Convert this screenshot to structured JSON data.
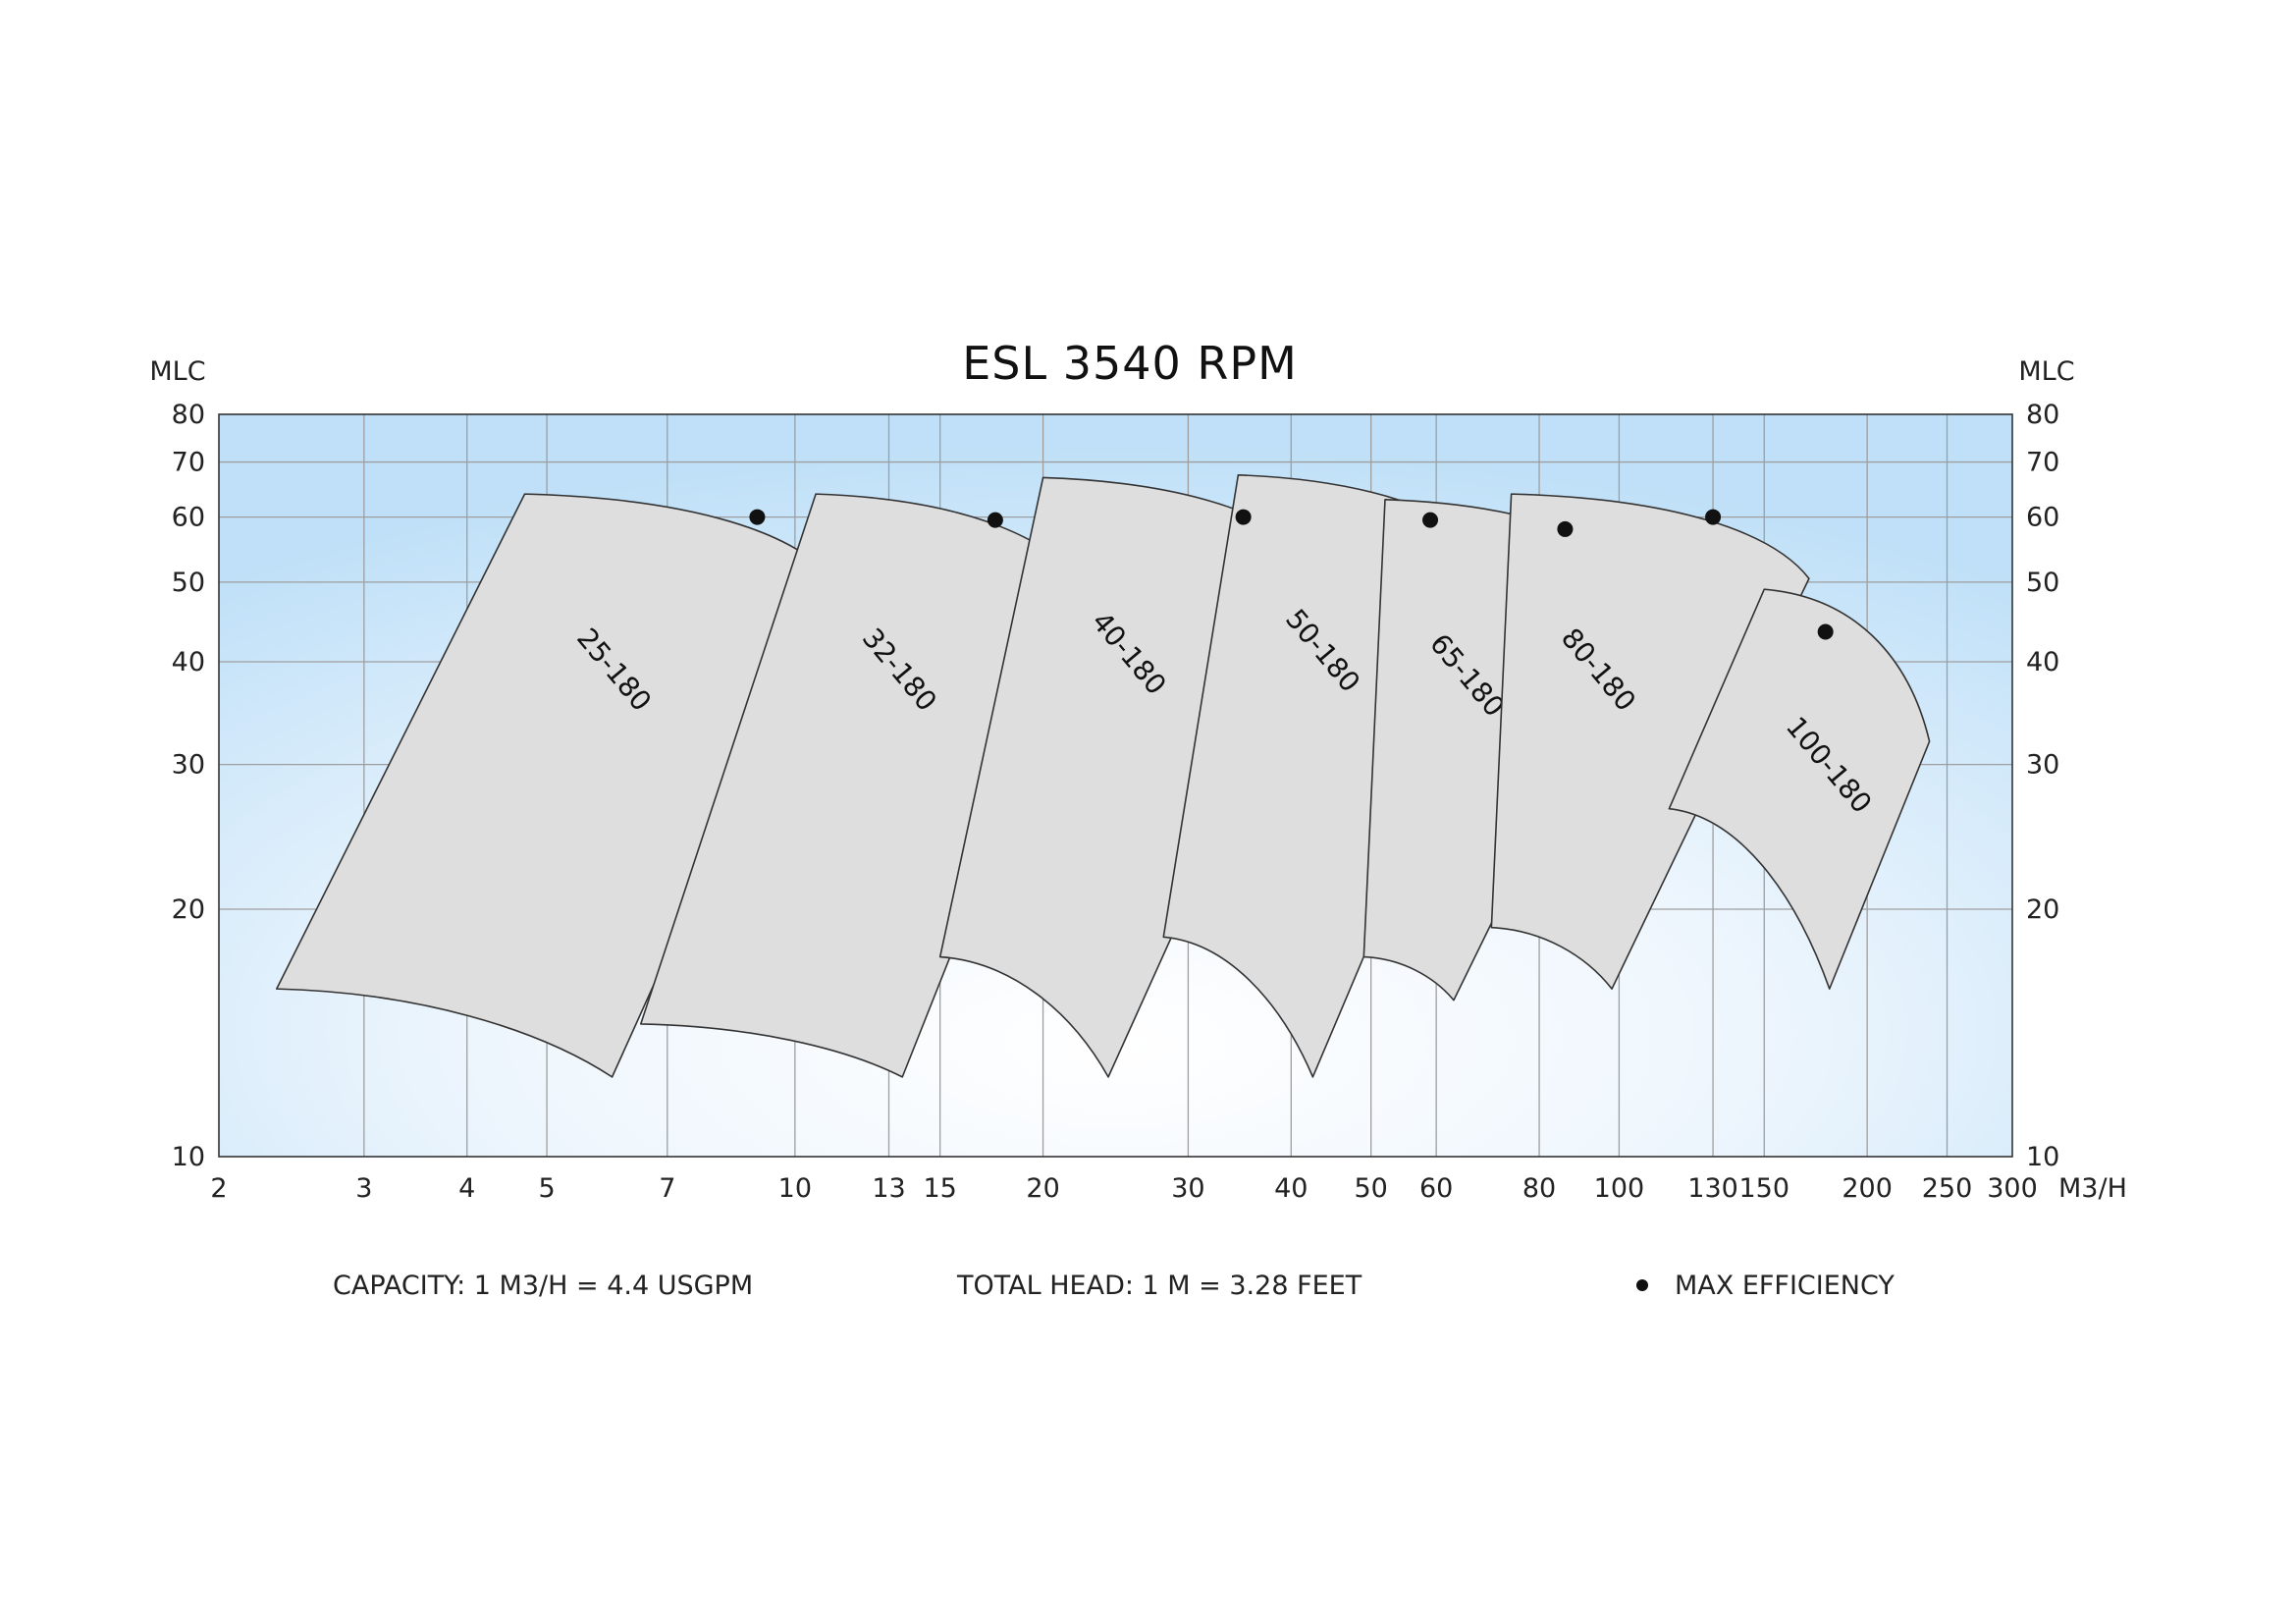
{
  "chart_data": {
    "type": "area",
    "title": "ESL 3540 RPM",
    "xlabel": "M3/H",
    "ylabel": "MLC",
    "ylabel_right": "MLC",
    "x_scale": "log",
    "y_scale": "log",
    "xlim": [
      2,
      300
    ],
    "ylim": [
      10,
      80
    ],
    "x_ticks": [
      2,
      3,
      4,
      5,
      7,
      10,
      13,
      15,
      20,
      30,
      40,
      50,
      60,
      80,
      100,
      130,
      150,
      200,
      250,
      300
    ],
    "y_ticks": [
      10,
      20,
      30,
      40,
      50,
      60,
      70,
      80
    ],
    "grid": true,
    "legend_placement": "bottom-right",
    "colors": {
      "background_edge": "#bfe0f8",
      "background_center": "#ffffff",
      "region_fill": "#dedede",
      "region_stroke": "#333333",
      "marker": "#111111",
      "grid": "#9e9e9e"
    },
    "series": [
      {
        "name": "25-180",
        "top_left": [
          4.7,
          64
        ],
        "top_right": [
          11.2,
          50
        ],
        "bottom_right": [
          6,
          12.5
        ],
        "bottom_left": [
          2.35,
          16
        ],
        "bep": [
          9,
          60
        ]
      },
      {
        "name": "32-180",
        "top_left": [
          10.6,
          64
        ],
        "top_right": [
          23,
          48
        ],
        "bottom_right": [
          13.5,
          12.5
        ],
        "bottom_left": [
          6.5,
          14.5
        ],
        "bep": [
          17.5,
          59.5
        ]
      },
      {
        "name": "40-180",
        "top_left": [
          20,
          67
        ],
        "top_right": [
          45,
          50.5
        ],
        "bottom_right": [
          24,
          12.5
        ],
        "bottom_left": [
          15,
          17.5
        ],
        "bep": [
          35,
          60
        ]
      },
      {
        "name": "50-180",
        "top_left": [
          34.5,
          67.5
        ],
        "top_right": [
          76,
          49.5
        ],
        "bottom_right": [
          42.5,
          12.5
        ],
        "bottom_left": [
          28,
          18.5
        ],
        "bep": [
          59,
          59.5
        ]
      },
      {
        "name": "65-180",
        "top_left": [
          52,
          63
        ],
        "top_right": [
          110,
          48.5
        ],
        "bottom_right": [
          63,
          15.5
        ],
        "bottom_left": [
          49,
          17.5
        ],
        "bep": [
          86,
          58
        ]
      },
      {
        "name": "80-180",
        "top_left": [
          74,
          64
        ],
        "top_right": [
          170,
          50.5
        ],
        "bottom_right": [
          98,
          16
        ],
        "bottom_left": [
          70,
          19
        ],
        "bep": [
          130,
          60
        ]
      },
      {
        "name": "100-180",
        "top_left": [
          150,
          49
        ],
        "top_right": [
          238,
          32
        ],
        "bottom_right": [
          180,
          16
        ],
        "bottom_left": [
          115,
          26.5
        ],
        "bep": [
          178,
          43.5
        ]
      }
    ]
  },
  "footer": {
    "capacity": "CAPACITY: 1 M3/H = 4.4 USGPM",
    "total_head": "TOTAL HEAD: 1 M = 3.28 FEET",
    "legend_bullet": "•",
    "legend_label": "MAX EFFICIENCY"
  }
}
